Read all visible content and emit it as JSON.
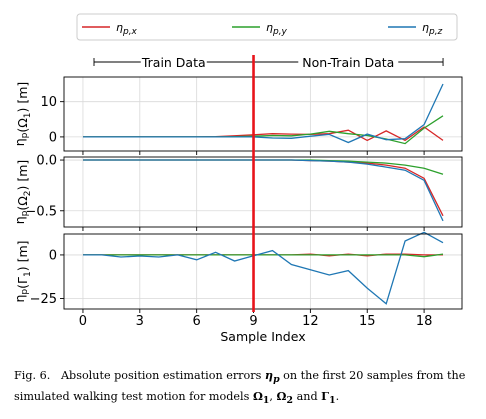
{
  "chart_data": {
    "type": "line",
    "x": [
      0,
      1,
      2,
      3,
      4,
      5,
      6,
      7,
      8,
      9,
      10,
      11,
      12,
      13,
      14,
      15,
      16,
      17,
      18,
      19
    ],
    "xlabel": "Sample Index",
    "xticks": [
      0,
      3,
      6,
      9,
      12,
      15,
      18
    ],
    "xlim": [
      -1,
      20
    ],
    "legend": {
      "placement": "top",
      "entries": [
        {
          "name": "ηp,x",
          "color": "#d62728"
        },
        {
          "name": "ηp,y",
          "color": "#2ca02c"
        },
        {
          "name": "ηp,z",
          "color": "#1f77b4"
        }
      ]
    },
    "divider": {
      "x": 9,
      "color": "#e8141b",
      "left_label": "Train Data",
      "right_label": "Non-Train Data"
    },
    "panels": [
      {
        "ylabel": "ηp(Ω1) [m]",
        "ylim": [
          -4,
          17
        ],
        "yticks": [
          0,
          10
        ],
        "ytick_labels": [
          "0",
          "10"
        ],
        "series": [
          {
            "name": "ηp,x",
            "color": "#d62728",
            "values": [
              0,
              0,
              0,
              0,
              0,
              0,
              0,
              0.1,
              0.3,
              0.6,
              0.9,
              0.8,
              0.7,
              0.9,
              1.9,
              -1.0,
              1.7,
              -1.0,
              2.8,
              -1.0
            ]
          },
          {
            "name": "ηp,y",
            "color": "#2ca02c",
            "values": [
              0,
              0,
              0,
              0,
              0,
              0,
              0,
              0,
              0.1,
              0.2,
              0.4,
              0.3,
              0.8,
              1.6,
              0.9,
              0.4,
              -0.6,
              -1.9,
              2.5,
              6.0
            ]
          },
          {
            "name": "ηp,z",
            "color": "#1f77b4",
            "values": [
              0,
              0,
              0,
              0,
              0,
              0,
              0,
              0,
              0,
              0,
              -0.3,
              -0.4,
              0.2,
              0.7,
              -1.6,
              0.8,
              -0.8,
              -0.5,
              3.5,
              15.0
            ]
          }
        ]
      },
      {
        "ylabel": "ηp(Ω2) [m]",
        "ylim": [
          -0.66,
          0.03
        ],
        "yticks": [
          0.0,
          -0.5
        ],
        "ytick_labels": [
          "0.0",
          "−0.5"
        ],
        "series": [
          {
            "name": "ηp,x",
            "color": "#d62728",
            "values": [
              0,
              0,
              0,
              0,
              0,
              0,
              0,
              0,
              0,
              0,
              0,
              0,
              -0.005,
              -0.01,
              -0.02,
              -0.03,
              -0.05,
              -0.08,
              -0.18,
              -0.55
            ]
          },
          {
            "name": "ηp,y",
            "color": "#2ca02c",
            "values": [
              0,
              0,
              0,
              0,
              0,
              0,
              0,
              0,
              0,
              0,
              0,
              0,
              0,
              -0.005,
              -0.01,
              -0.02,
              -0.03,
              -0.05,
              -0.08,
              -0.14
            ]
          },
          {
            "name": "ηp,z",
            "color": "#1f77b4",
            "values": [
              0,
              0,
              0,
              0,
              0,
              0,
              0,
              0,
              0,
              0,
              0,
              0,
              -0.005,
              -0.01,
              -0.02,
              -0.04,
              -0.07,
              -0.1,
              -0.2,
              -0.6
            ]
          }
        ]
      },
      {
        "ylabel": "ηp(Γ1) [m]",
        "ylim": [
          -31,
          12
        ],
        "yticks": [
          0,
          -25
        ],
        "ytick_labels": [
          "0",
          "−25"
        ],
        "series": [
          {
            "name": "ηp,x",
            "color": "#d62728",
            "values": [
              0,
              0,
              0,
              0,
              0,
              0,
              0,
              0,
              0,
              0,
              0,
              0,
              0.5,
              -0.5,
              0.5,
              -0.5,
              0.5,
              0.5,
              0,
              0
            ]
          },
          {
            "name": "ηp,y",
            "color": "#2ca02c",
            "values": [
              0,
              0,
              0,
              0,
              0,
              0,
              0,
              0,
              0,
              0,
              0,
              0,
              0,
              0,
              0,
              0,
              0,
              0,
              -1,
              0.5
            ]
          },
          {
            "name": "ηp,z",
            "color": "#1f77b4",
            "values": [
              0,
              0,
              -1.2,
              -0.6,
              -1.2,
              0,
              -2.8,
              1.5,
              -3.5,
              -0.5,
              2.5,
              -5.5,
              -8.5,
              -11.5,
              -9,
              -19,
              -28,
              8,
              13,
              7
            ]
          }
        ]
      }
    ]
  },
  "caption": {
    "prefix": "Fig. 6.",
    "part1": "Absolute position estimation errors",
    "symbol": "η",
    "symbol_sub": "p",
    "part2": "on the first 20 samples from the simulated walking test motion for models",
    "m1": "Ω",
    "m1_sub": "1",
    "sep1": ",",
    "m2": "Ω",
    "m2_sub": "2",
    "and": "and",
    "m3": "Γ",
    "m3_sub": "1",
    "end": "."
  }
}
